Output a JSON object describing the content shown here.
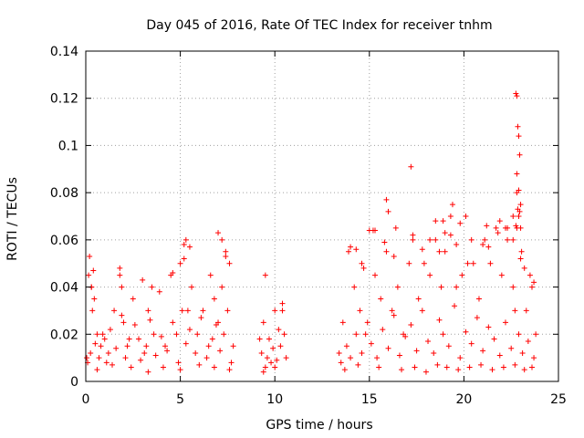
{
  "chart_data": {
    "type": "scatter",
    "title": "Day 045 of 2016, Rate Of TEC Index for receiver tnhm",
    "xlabel": "GPS time / hours",
    "ylabel": "ROTI / TECUs",
    "xlim": [
      0,
      25
    ],
    "ylim": [
      0,
      0.14
    ],
    "grid": true,
    "x_ticks": [
      {
        "value": 0,
        "label": "0"
      },
      {
        "value": 5,
        "label": "5"
      },
      {
        "value": 10,
        "label": "10"
      },
      {
        "value": 15,
        "label": "15"
      },
      {
        "value": 20,
        "label": "20"
      },
      {
        "value": 25,
        "label": "25"
      }
    ],
    "y_ticks": [
      {
        "value": 0,
        "label": "0"
      },
      {
        "value": 0.02,
        "label": "0.02"
      },
      {
        "value": 0.04,
        "label": "0.04"
      },
      {
        "value": 0.06,
        "label": "0.06"
      },
      {
        "value": 0.08,
        "label": "0.08"
      },
      {
        "value": 0.1,
        "label": "0.1"
      },
      {
        "value": 0.12,
        "label": "0.12"
      },
      {
        "value": 0.14,
        "label": "0.14"
      }
    ],
    "marker": "+",
    "marker_color": "#ff0000",
    "series": [
      {
        "name": "ROTI",
        "x": [
          0.05,
          0.15,
          0.3,
          0.45,
          0.6,
          0.8,
          1.0,
          1.2,
          1.5,
          1.8,
          2.0,
          2.2,
          2.5,
          2.8,
          3.1,
          3.3,
          3.6,
          3.9,
          4.2,
          4.5,
          4.8,
          5.0,
          5.2,
          5.4,
          5.6,
          5.9,
          6.2,
          6.5,
          6.8,
          7.0,
          7.2,
          7.4,
          7.6,
          7.8,
          9.2,
          9.4,
          9.6,
          9.8,
          10.0,
          10.2,
          10.4,
          10.6,
          13.4,
          13.6,
          13.9,
          14.2,
          14.5,
          14.8,
          15.0,
          15.3,
          15.6,
          15.9,
          16.2,
          16.5,
          16.8,
          17.1,
          17.3,
          17.6,
          17.9,
          18.2,
          18.5,
          18.8,
          19.0,
          19.3,
          19.6,
          19.9,
          20.2,
          20.5,
          20.8,
          21.1,
          21.4,
          21.7,
          22.0,
          22.3,
          22.6,
          22.8,
          23.0,
          23.3,
          23.6,
          23.8,
          0.1,
          0.25,
          0.35,
          0.5,
          0.7,
          0.9,
          1.1,
          1.3,
          1.6,
          1.9,
          2.1,
          2.3,
          2.6,
          2.9,
          3.2,
          3.4,
          3.7,
          4.0,
          4.3,
          4.6,
          4.9,
          5.1,
          5.3,
          5.5,
          5.8,
          6.1,
          6.4,
          6.7,
          6.9,
          7.1,
          7.3,
          7.5,
          7.7,
          9.3,
          9.5,
          9.7,
          9.9,
          10.1,
          10.3,
          10.5,
          13.5,
          13.8,
          14.0,
          14.3,
          14.6,
          14.9,
          15.1,
          15.4,
          15.7,
          16.0,
          16.3,
          16.6,
          16.9,
          17.2,
          17.5,
          17.8,
          18.1,
          18.4,
          18.7,
          18.9,
          19.2,
          19.5,
          19.8,
          20.1,
          20.4,
          20.7,
          21.0,
          21.3,
          21.6,
          21.9,
          22.2,
          22.5,
          22.7,
          22.9,
          23.1,
          23.4,
          23.7,
          0.2,
          0.4,
          0.3,
          1.8,
          1.9,
          3.0,
          3.5,
          4.6,
          5.2,
          5.3,
          5.5,
          6.6,
          7.0,
          7.2,
          7.4,
          9.5,
          10.4,
          14.0,
          14.3,
          14.7,
          15.3,
          15.9,
          16.0,
          16.4,
          17.2,
          17.3,
          17.8,
          18.2,
          18.7,
          19.0,
          19.3,
          19.4,
          20.4,
          21.0,
          21.3,
          21.9,
          22.2,
          22.6,
          22.8,
          22.9,
          23.0,
          23.2,
          23.5,
          23.7,
          22.75,
          22.8,
          22.85,
          22.9,
          22.95,
          22.8,
          22.9,
          23.0,
          22.85,
          22.75,
          22.95,
          23.05,
          18.5,
          19.6,
          19.8,
          16.3,
          15.2,
          15.8,
          14.6,
          18.9,
          20.1,
          21.2,
          21.8,
          22.3,
          22.6,
          0.6,
          1.4,
          2.4,
          3.3,
          4.1,
          5.0,
          6.0,
          6.8,
          7.6,
          9.4,
          10.0,
          13.7,
          14.4,
          15.5,
          16.7,
          17.4,
          18.0,
          18.6,
          19.1,
          19.7,
          20.3,
          20.9,
          21.5,
          22.1,
          22.7,
          23.2,
          23.6
        ],
        "y": [
          0.01,
          0.045,
          0.04,
          0.035,
          0.02,
          0.015,
          0.018,
          0.012,
          0.03,
          0.045,
          0.025,
          0.015,
          0.035,
          0.018,
          0.012,
          0.03,
          0.02,
          0.038,
          0.015,
          0.045,
          0.02,
          0.05,
          0.058,
          0.03,
          0.04,
          0.02,
          0.03,
          0.015,
          0.035,
          0.025,
          0.04,
          0.055,
          0.05,
          0.015,
          0.018,
          0.025,
          0.01,
          0.008,
          0.03,
          0.022,
          0.033,
          0.01,
          0.012,
          0.025,
          0.055,
          0.04,
          0.03,
          0.02,
          0.064,
          0.045,
          0.035,
          0.055,
          0.03,
          0.04,
          0.02,
          0.05,
          0.06,
          0.035,
          0.05,
          0.045,
          0.06,
          0.04,
          0.055,
          0.07,
          0.04,
          0.045,
          0.05,
          0.05,
          0.035,
          0.06,
          0.05,
          0.065,
          0.045,
          0.06,
          0.04,
          0.08,
          0.065,
          0.03,
          0.04,
          0.02,
          0.008,
          0.012,
          0.03,
          0.016,
          0.01,
          0.02,
          0.008,
          0.022,
          0.014,
          0.028,
          0.01,
          0.018,
          0.024,
          0.009,
          0.015,
          0.026,
          0.011,
          0.019,
          0.013,
          0.025,
          0.008,
          0.03,
          0.016,
          0.022,
          0.012,
          0.027,
          0.01,
          0.018,
          0.024,
          0.013,
          0.02,
          0.03,
          0.008,
          0.012,
          0.006,
          0.018,
          0.014,
          0.009,
          0.015,
          0.02,
          0.008,
          0.015,
          0.01,
          0.02,
          0.012,
          0.025,
          0.016,
          0.01,
          0.022,
          0.014,
          0.028,
          0.011,
          0.019,
          0.024,
          0.013,
          0.03,
          0.017,
          0.012,
          0.026,
          0.02,
          0.015,
          0.032,
          0.01,
          0.021,
          0.016,
          0.027,
          0.013,
          0.023,
          0.018,
          0.011,
          0.025,
          0.014,
          0.03,
          0.02,
          0.012,
          0.017,
          0.01,
          0.053,
          0.047,
          0.04,
          0.048,
          0.04,
          0.043,
          0.04,
          0.046,
          0.052,
          0.06,
          0.057,
          0.045,
          0.063,
          0.06,
          0.053,
          0.045,
          0.03,
          0.057,
          0.056,
          0.048,
          0.064,
          0.077,
          0.072,
          0.065,
          0.091,
          0.062,
          0.056,
          0.06,
          0.055,
          0.063,
          0.062,
          0.075,
          0.06,
          0.058,
          0.057,
          0.068,
          0.065,
          0.07,
          0.065,
          0.07,
          0.052,
          0.048,
          0.045,
          0.042,
          0.122,
          0.121,
          0.108,
          0.104,
          0.096,
          0.088,
          0.081,
          0.075,
          0.073,
          0.066,
          0.072,
          0.055,
          0.068,
          0.058,
          0.067,
          0.053,
          0.064,
          0.059,
          0.05,
          0.068,
          0.07,
          0.066,
          0.063,
          0.065,
          0.06,
          0.005,
          0.007,
          0.006,
          0.004,
          0.006,
          0.005,
          0.007,
          0.006,
          0.005,
          0.004,
          0.006,
          0.005,
          0.007,
          0.006,
          0.005,
          0.006,
          0.004,
          0.007,
          0.006,
          0.005,
          0.006,
          0.007,
          0.005,
          0.006,
          0.007,
          0.005,
          0.006
        ]
      }
    ]
  }
}
